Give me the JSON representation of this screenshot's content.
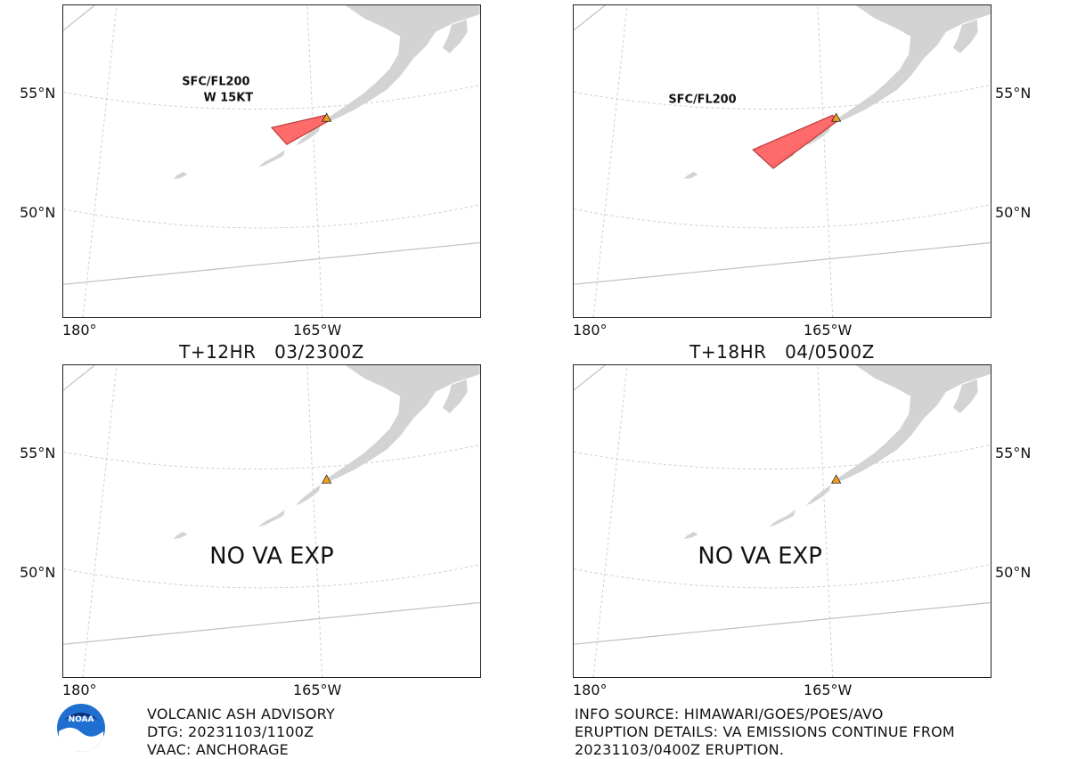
{
  "colors": {
    "land": "#d3d3d3",
    "ash": "#ff5a5a",
    "ash_edge": "#b83a3a",
    "volcano": "#f0a020",
    "graticule": "#cccccc",
    "frame": "#222222"
  },
  "axis_labels": {
    "lat_55": "55°N",
    "lat_50": "50°N",
    "lon_180": "180°",
    "lon_165": "165°W"
  },
  "panels": [
    {
      "id": "tl",
      "title": "",
      "labels": [
        "SFC/FL200",
        "W 15KT"
      ],
      "message": "",
      "has_ash": true
    },
    {
      "id": "tr",
      "title": "",
      "labels": [
        "SFC/FL200"
      ],
      "message": "",
      "has_ash": true
    },
    {
      "id": "bl",
      "title": "T+12HR   03/2300Z",
      "labels": [],
      "message": "NO VA EXP",
      "has_ash": false
    },
    {
      "id": "br",
      "title": "T+18HR   04/0500Z",
      "labels": [],
      "message": "NO VA EXP",
      "has_ash": false
    }
  ],
  "footer": {
    "left": [
      "VOLCANIC ASH ADVISORY",
      "DTG: 20231103/1100Z",
      "VAAC: ANCHORAGE"
    ],
    "right": [
      "INFO SOURCE: HIMAWARI/GOES/POES/AVO",
      "ERUPTION DETAILS: VA EMISSIONS CONTINUE FROM",
      "20231103/0400Z ERUPTION."
    ]
  },
  "logo": {
    "text": "NOAA"
  }
}
